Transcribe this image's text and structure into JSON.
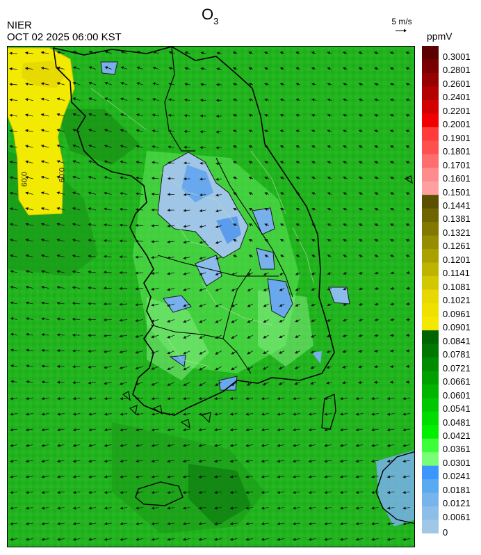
{
  "header": {
    "org": "NIER",
    "timestamp": "OCT 02 2025 06:00 KST",
    "title_main": "O",
    "title_sub": "3",
    "wind_scale_label": "5 m/s",
    "unit": "ppmV"
  },
  "map": {
    "contour_label_1": "0.09",
    "contour_label_2": "0.09"
  },
  "legend": {
    "labels": [
      "0.3001",
      "0.2801",
      "0.2601",
      "0.2401",
      "0.2201",
      "0.2001",
      "0.1901",
      "0.1801",
      "0.1701",
      "0.1601",
      "0.1501",
      "0.1441",
      "0.1381",
      "0.1321",
      "0.1261",
      "0.1201",
      "0.1141",
      "0.1081",
      "0.1021",
      "0.0961",
      "0.0901",
      "0.0841",
      "0.0781",
      "0.0721",
      "0.0661",
      "0.0601",
      "0.0541",
      "0.0481",
      "0.0421",
      "0.0361",
      "0.0301",
      "0.0241",
      "0.0181",
      "0.0121",
      "0.0061",
      "0"
    ],
    "colors": [
      "#5a0000",
      "#780000",
      "#960000",
      "#b40000",
      "#d20000",
      "#f00000",
      "#ff3c3c",
      "#ff5050",
      "#ff6e6e",
      "#ff8c8c",
      "#ffa0a0",
      "#5a5000",
      "#6e6400",
      "#827800",
      "#968c00",
      "#aaa000",
      "#beb400",
      "#d2c800",
      "#e6d800",
      "#f0e000",
      "#f5e800",
      "#006400",
      "#007800",
      "#008c00",
      "#00a000",
      "#00b400",
      "#00c800",
      "#00dc00",
      "#00f000",
      "#3cff3c",
      "#78ff78",
      "#3c96ff",
      "#5aaaf0",
      "#78b4ec",
      "#8cbee8",
      "#a0c8e6"
    ]
  }
}
